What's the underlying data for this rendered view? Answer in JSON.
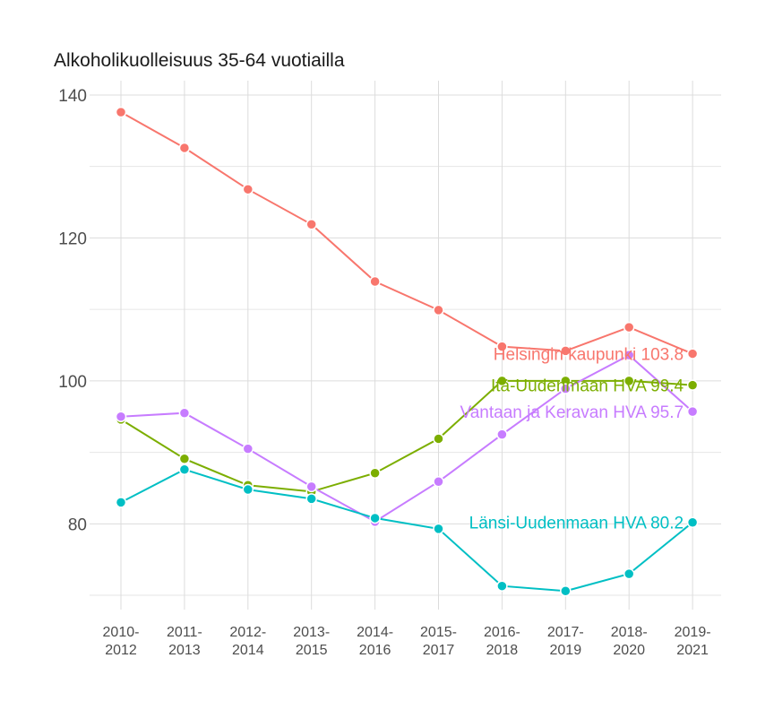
{
  "chart_data": {
    "type": "line",
    "title": "Alkoholikuolleisuus 35-64 vuotiailla",
    "xlabel": "",
    "ylabel": "",
    "categories": [
      [
        "2010-",
        "2012"
      ],
      [
        "2011-",
        "2013"
      ],
      [
        "2012-",
        "2014"
      ],
      [
        "2013-",
        "2015"
      ],
      [
        "2014-",
        "2016"
      ],
      [
        "2015-",
        "2017"
      ],
      [
        "2016-",
        "2018"
      ],
      [
        "2017-",
        "2019"
      ],
      [
        "2018-",
        "2020"
      ],
      [
        "2019-",
        "2021"
      ]
    ],
    "ylim": [
      68,
      142
    ],
    "yticks": [
      80,
      100,
      120,
      140
    ],
    "grid": true,
    "legend": "none",
    "series": [
      {
        "name": "Helsingin kaupunki",
        "color": "#F8766D",
        "end_label": "Helsingin kaupunki 103.8",
        "values": [
          137.6,
          132.6,
          126.8,
          121.9,
          113.9,
          109.9,
          104.8,
          104.2,
          107.5,
          103.8
        ]
      },
      {
        "name": "Itä-Uudenmaan HVA",
        "color": "#7CAE00",
        "end_label": "Itä-Uudenmaan HVA 99.4",
        "values": [
          94.6,
          89.1,
          85.4,
          84.5,
          87.1,
          91.9,
          100.0,
          100.0,
          100.0,
          99.4
        ]
      },
      {
        "name": "Vantaan ja Keravan HVA",
        "color": "#C77CFF",
        "end_label": "Vantaan ja Keravan HVA 95.7",
        "values": [
          95.0,
          95.5,
          90.5,
          85.2,
          80.3,
          85.9,
          92.5,
          98.9,
          103.6,
          95.7
        ]
      },
      {
        "name": "Länsi-Uudenmaan HVA",
        "color": "#00BFC4",
        "end_label": "Länsi-Uudenmaan HVA 80.2",
        "values": [
          83.0,
          87.6,
          84.8,
          83.5,
          80.8,
          79.3,
          71.3,
          70.6,
          73.0,
          80.2
        ]
      }
    ]
  }
}
